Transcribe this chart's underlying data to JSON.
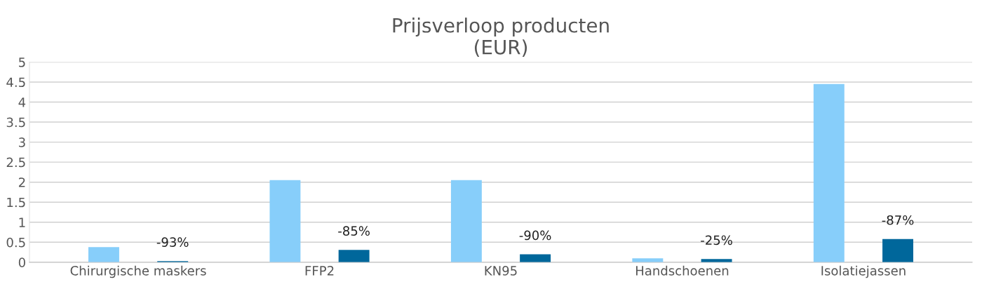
{
  "chart_data": {
    "type": "bar",
    "title": "Prijsverloop producten\n(EUR)",
    "categories": [
      "Chirurgische maskers",
      "FFP2",
      "KN95",
      "Handschoenen",
      "Isolatiejassen"
    ],
    "series": [
      {
        "color": "#87cefa",
        "values": [
          0.38,
          2.05,
          2.05,
          0.1,
          4.45
        ]
      },
      {
        "color": "#00679b",
        "values": [
          0.03,
          0.31,
          0.2,
          0.08,
          0.58
        ]
      }
    ],
    "annotations": [
      "-93%",
      "-85%",
      "-90%",
      "-25%",
      "-87%"
    ],
    "ylim": [
      0,
      5
    ],
    "yticks": [
      0,
      0.5,
      1,
      1.5,
      2,
      2.5,
      3,
      3.5,
      4,
      4.5,
      5
    ],
    "grid": "y"
  }
}
